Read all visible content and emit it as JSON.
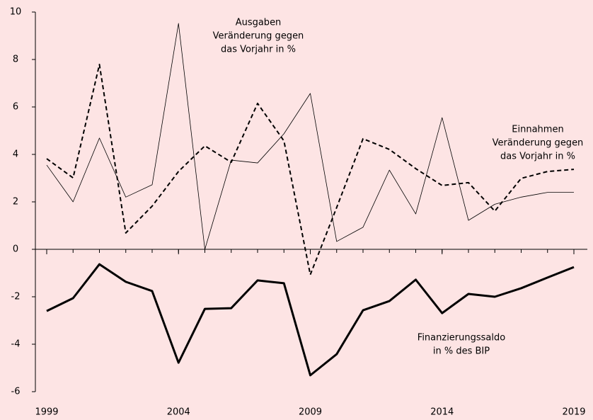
{
  "chart_data": {
    "type": "line",
    "x": [
      1999,
      2000,
      2001,
      2002,
      2003,
      2004,
      2005,
      2006,
      2007,
      2008,
      2009,
      2010,
      2011,
      2012,
      2013,
      2014,
      2015,
      2016,
      2017,
      2018,
      2019
    ],
    "series": [
      {
        "color": "#000000",
        "line_style": "solid",
        "line_width": 0.8,
        "values": [
          3.55,
          2.0,
          4.69,
          2.2,
          2.72,
          9.52,
          0,
          3.76,
          3.64,
          4.87,
          6.57,
          0.33,
          0.93,
          3.34,
          1.49,
          5.55,
          1.22,
          1.9,
          2.2,
          2.4,
          2.4
        ]
      },
      {
        "color": "#000000",
        "line_style": "dashed",
        "line_width": 2,
        "values": [
          3.82,
          3.01,
          7.79,
          0.69,
          1.82,
          3.28,
          4.36,
          3.67,
          6.15,
          4.57,
          -1.07,
          1.76,
          4.66,
          4.21,
          3.4,
          2.69,
          2.81,
          1.61,
          2.99,
          3.28,
          3.37
        ]
      },
      {
        "color": "#000000",
        "line_style": "solid",
        "line_width": 3,
        "values": [
          -2.6,
          -2.06,
          -0.63,
          -1.37,
          -1.76,
          -4.78,
          -2.51,
          -2.48,
          -1.31,
          -1.43,
          -5.31,
          -4.42,
          -2.57,
          -2.18,
          -1.28,
          -2.69,
          -1.88,
          -2.0,
          -1.64,
          -1.19,
          -0.75
        ]
      }
    ],
    "annotations": [
      [
        "Ausgaben",
        "Veränderung gegen",
        "das Vorjahr in %"
      ],
      [
        "Einnahmen",
        "Veränderung gegen",
        "das Vorjahr in %"
      ],
      [
        "Finanzierungssaldo",
        "in % des BIP"
      ]
    ],
    "xlim": [
      1999,
      2019
    ],
    "xticks": [
      1999,
      2004,
      2009,
      2014,
      2019
    ],
    "ylim": [
      -6,
      10
    ],
    "yticks": [
      -6,
      -4,
      -2,
      0,
      2,
      4,
      6,
      8,
      10
    ],
    "grid": false,
    "background": "#fde4e4"
  }
}
